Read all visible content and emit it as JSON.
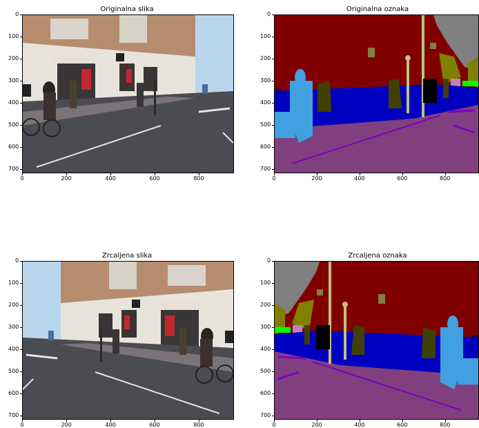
{
  "panels": [
    {
      "title": "Originalna slika"
    },
    {
      "title": "Originalna oznaka"
    },
    {
      "title": "Zrcaljena slika"
    },
    {
      "title": "Zrcaljena oznaka"
    }
  ],
  "axes": {
    "x_ticks": [
      "0",
      "200",
      "400",
      "600",
      "800"
    ],
    "y_ticks": [
      "0",
      "100",
      "200",
      "300",
      "400",
      "500",
      "600",
      "700"
    ]
  },
  "colors": {
    "building": "#800000",
    "sky": "#808080",
    "road": "#804080",
    "sidewalk": "#0000c0",
    "pedestrian": "#4080c0",
    "tree": "#808000",
    "pole": "#c0c080",
    "sign": "#c08080",
    "car": "#400080",
    "fence": "#404080"
  }
}
